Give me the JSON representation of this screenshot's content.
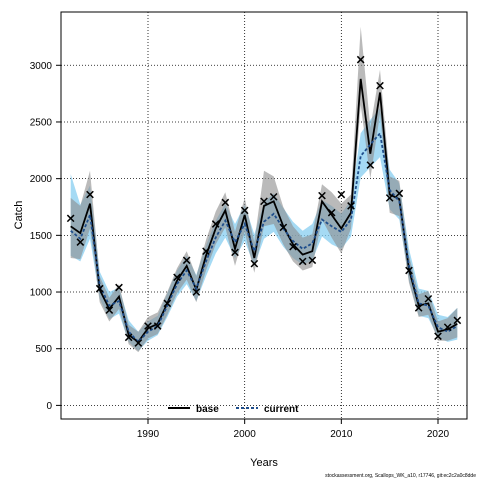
{
  "chart_data": {
    "type": "line",
    "title": "",
    "xlabel": "Years",
    "ylabel": "Catch",
    "xlim": [
      1981,
      2023
    ],
    "ylim": [
      -120,
      3470
    ],
    "x_ticks": [
      1990,
      2000,
      2010,
      2020
    ],
    "y_ticks": [
      0,
      500,
      1000,
      1500,
      2000,
      2500,
      3000
    ],
    "grid": true,
    "legend_position": "bottom",
    "colors": {
      "base": "#000000",
      "base_band": "#8c8c8c",
      "current": "#1f4e8c",
      "current_band": "#87cef0",
      "observed": "#000000"
    },
    "observed": {
      "x": [
        1982,
        1983,
        1984,
        1985,
        1986,
        1987,
        1988,
        1989,
        1990,
        1991,
        1992,
        1993,
        1994,
        1995,
        1996,
        1997,
        1998,
        1999,
        2000,
        2001,
        2002,
        2003,
        2004,
        2005,
        2006,
        2007,
        2008,
        2009,
        2010,
        2011,
        2012,
        2013,
        2014,
        2015,
        2016,
        2017,
        2018,
        2019,
        2020,
        2021,
        2022
      ],
      "y": [
        1650,
        1440,
        1860,
        1030,
        840,
        1040,
        600,
        550,
        700,
        700,
        900,
        1130,
        1280,
        1000,
        1360,
        1600,
        1790,
        1350,
        1720,
        1250,
        1800,
        1840,
        1570,
        1400,
        1270,
        1280,
        1850,
        1700,
        1860,
        1760,
        3050,
        2120,
        2820,
        1830,
        1870,
        1190,
        860,
        940,
        610,
        690,
        750
      ]
    },
    "series": [
      {
        "name": "base",
        "x": [
          1982,
          1983,
          1984,
          1985,
          1986,
          1987,
          1988,
          1989,
          1990,
          1991,
          1992,
          1993,
          1994,
          1995,
          1996,
          1997,
          1998,
          1999,
          2000,
          2001,
          2002,
          2003,
          2004,
          2005,
          2006,
          2007,
          2008,
          2009,
          2010,
          2011,
          2012,
          2013,
          2014,
          2015,
          2016,
          2017,
          2018,
          2019,
          2020,
          2021,
          2022
        ],
        "y": [
          1580,
          1520,
          1780,
          1020,
          850,
          960,
          620,
          560,
          680,
          720,
          900,
          1100,
          1230,
          1020,
          1320,
          1560,
          1720,
          1380,
          1680,
          1300,
          1760,
          1800,
          1580,
          1420,
          1330,
          1360,
          1800,
          1680,
          1560,
          1700,
          2880,
          2220,
          2760,
          1860,
          1820,
          1200,
          880,
          900,
          650,
          670,
          720
        ],
        "lower": [
          1300,
          1290,
          1560,
          910,
          740,
          850,
          540,
          470,
          590,
          630,
          800,
          990,
          1110,
          910,
          1190,
          1420,
          1570,
          1230,
          1530,
          1170,
          1580,
          1600,
          1420,
          1270,
          1190,
          1220,
          1640,
          1480,
          1340,
          1560,
          2650,
          2000,
          2570,
          1700,
          1670,
          1080,
          780,
          800,
          570,
          570,
          600
        ],
        "upper": [
          1830,
          1760,
          2070,
          1140,
          950,
          1070,
          710,
          650,
          780,
          820,
          1000,
          1210,
          1360,
          1140,
          1460,
          1710,
          1880,
          1530,
          1830,
          1440,
          2070,
          2020,
          1750,
          1580,
          1480,
          1510,
          1950,
          1880,
          1780,
          1860,
          3340,
          2450,
          2960,
          2020,
          1980,
          1320,
          980,
          1010,
          740,
          770,
          860
        ]
      },
      {
        "name": "current",
        "x": [
          1982,
          1983,
          1984,
          1985,
          1986,
          1987,
          1988,
          1989,
          1990,
          1991,
          1992,
          1993,
          1994,
          1995,
          1996,
          1997,
          1998,
          1999,
          2000,
          2001,
          2002,
          2003,
          2004,
          2005,
          2006,
          2007,
          2008,
          2009,
          2010,
          2011,
          2012,
          2013,
          2014,
          2015,
          2016,
          2017,
          2018,
          2019,
          2020,
          2021,
          2022
        ],
        "y": [
          1540,
          1470,
          1680,
          1060,
          880,
          920,
          650,
          560,
          650,
          700,
          880,
          1070,
          1190,
          1030,
          1270,
          1480,
          1630,
          1440,
          1600,
          1360,
          1620,
          1690,
          1560,
          1450,
          1380,
          1430,
          1640,
          1580,
          1530,
          1640,
          2200,
          2300,
          2400,
          1900,
          1800,
          1230,
          900,
          880,
          690,
          650,
          700
        ],
        "lower": [
          1320,
          1270,
          1470,
          940,
          760,
          810,
          560,
          480,
          570,
          620,
          780,
          960,
          1070,
          920,
          1140,
          1340,
          1480,
          1300,
          1450,
          1230,
          1470,
          1530,
          1400,
          1300,
          1240,
          1280,
          1490,
          1420,
          1380,
          1490,
          2010,
          2100,
          2190,
          1730,
          1640,
          1100,
          790,
          770,
          600,
          560,
          580
        ],
        "upper": [
          2040,
          1770,
          1940,
          1180,
          1000,
          1040,
          750,
          650,
          740,
          790,
          990,
          1190,
          1320,
          1150,
          1410,
          1630,
          1780,
          1600,
          1770,
          1510,
          1790,
          1870,
          1740,
          1620,
          1540,
          1600,
          1810,
          1760,
          1690,
          1810,
          2400,
          2520,
          2620,
          2080,
          1960,
          1380,
          1030,
          1010,
          800,
          780,
          860
        ]
      }
    ],
    "annotation": "stockassessment.org, Scallops_WK_a10, r17746, git:ec2c2a0c8dde"
  }
}
